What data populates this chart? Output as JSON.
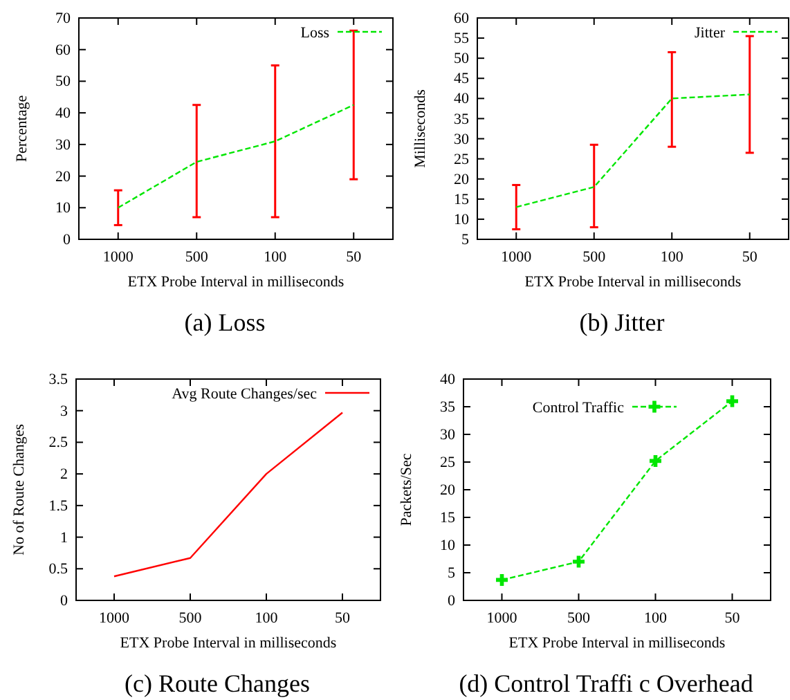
{
  "chart_data": [
    {
      "type": "line",
      "title": "(a)  Loss",
      "xlabel": "ETX Probe Interval in milliseconds",
      "ylabel": "Percentage",
      "categories": [
        "1000",
        "500",
        "100",
        "50"
      ],
      "ylim": [
        0,
        70
      ],
      "yticks": [
        0,
        10,
        20,
        30,
        40,
        50,
        60,
        70
      ],
      "legend": "top right",
      "line_style": "dashed",
      "series": [
        {
          "name": "Loss",
          "color": "#00e600",
          "values": [
            10,
            24.5,
            31,
            42.5
          ],
          "errors": [
            [
              4.5,
              15.5
            ],
            [
              7,
              42.5
            ],
            [
              7,
              55
            ],
            [
              19,
              66
            ]
          ]
        }
      ]
    },
    {
      "type": "line",
      "title": "(b)  Jitter",
      "xlabel": "ETX Probe Interval in milliseconds",
      "ylabel": "Milliseconds",
      "categories": [
        "1000",
        "500",
        "100",
        "50"
      ],
      "ylim": [
        5,
        60
      ],
      "yticks": [
        5,
        10,
        15,
        20,
        25,
        30,
        35,
        40,
        45,
        50,
        55,
        60
      ],
      "legend": "top right",
      "line_style": "dashed",
      "series": [
        {
          "name": "Jitter",
          "color": "#00e600",
          "values": [
            13,
            18,
            40,
            41
          ],
          "errors": [
            [
              7.5,
              18.5
            ],
            [
              8,
              28.5
            ],
            [
              28,
              51.5
            ],
            [
              26.5,
              55.5
            ]
          ]
        }
      ]
    },
    {
      "type": "line",
      "title": "(c)  Route Changes",
      "xlabel": "ETX Probe Interval in milliseconds",
      "ylabel": "No of Route Changes",
      "categories": [
        "1000",
        "500",
        "100",
        "50"
      ],
      "ylim": [
        0,
        3.5
      ],
      "yticks": [
        0,
        0.5,
        1,
        1.5,
        2,
        2.5,
        3,
        3.5
      ],
      "legend": "top right",
      "line_style": "solid",
      "series": [
        {
          "name": "Avg Route Changes/sec",
          "color": "#ff0000",
          "values": [
            0.38,
            0.67,
            2.0,
            2.97
          ]
        }
      ]
    },
    {
      "type": "line",
      "title": "(d)  Control Traffi c Overhead",
      "xlabel": "ETX Probe Interval in milliseconds",
      "ylabel": "Packets/Sec",
      "categories": [
        "1000",
        "500",
        "100",
        "50"
      ],
      "ylim": [
        0,
        40
      ],
      "yticks": [
        0,
        5,
        10,
        15,
        20,
        25,
        30,
        35,
        40
      ],
      "legend": "top right",
      "line_style": "dashed",
      "marker": "cross",
      "series": [
        {
          "name": "Control Traffic",
          "color": "#00e600",
          "values": [
            3.7,
            7,
            25.2,
            36
          ]
        }
      ]
    }
  ]
}
